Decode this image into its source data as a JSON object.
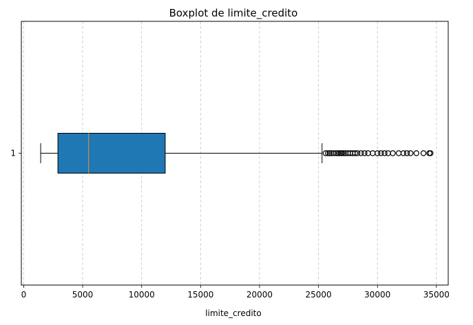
{
  "chart_data": {
    "type": "boxplot",
    "orientation": "horizontal",
    "title": "Boxplot de limite_credito",
    "xlabel": "limite_credito",
    "ylabel": "",
    "xlim": [
      -200,
      36000
    ],
    "x_ticks": [
      0,
      5000,
      10000,
      15000,
      20000,
      25000,
      30000,
      35000
    ],
    "x_tick_labels": [
      "0",
      "5000",
      "10000",
      "15000",
      "20000",
      "25000",
      "30000",
      "35000"
    ],
    "y_ticks": [
      "1"
    ],
    "grid": "x-axis dashed",
    "colors": {
      "box": "#1f77b4",
      "median": "#c98c4a",
      "line": "#000000"
    },
    "series": [
      {
        "category": "1",
        "whisker_low": 1438,
        "q1": 2900,
        "median": 5500,
        "q3": 12000,
        "whisker_high": 25300,
        "outliers": [
          25600,
          25800,
          25950,
          26100,
          26300,
          26500,
          26650,
          26800,
          26900,
          27000,
          27150,
          27300,
          27500,
          27700,
          27900,
          28100,
          28300,
          28600,
          28900,
          29200,
          29600,
          30000,
          30300,
          30600,
          30900,
          31300,
          31800,
          32200,
          32500,
          32800,
          33300,
          33900,
          34400,
          34500
        ]
      }
    ]
  }
}
